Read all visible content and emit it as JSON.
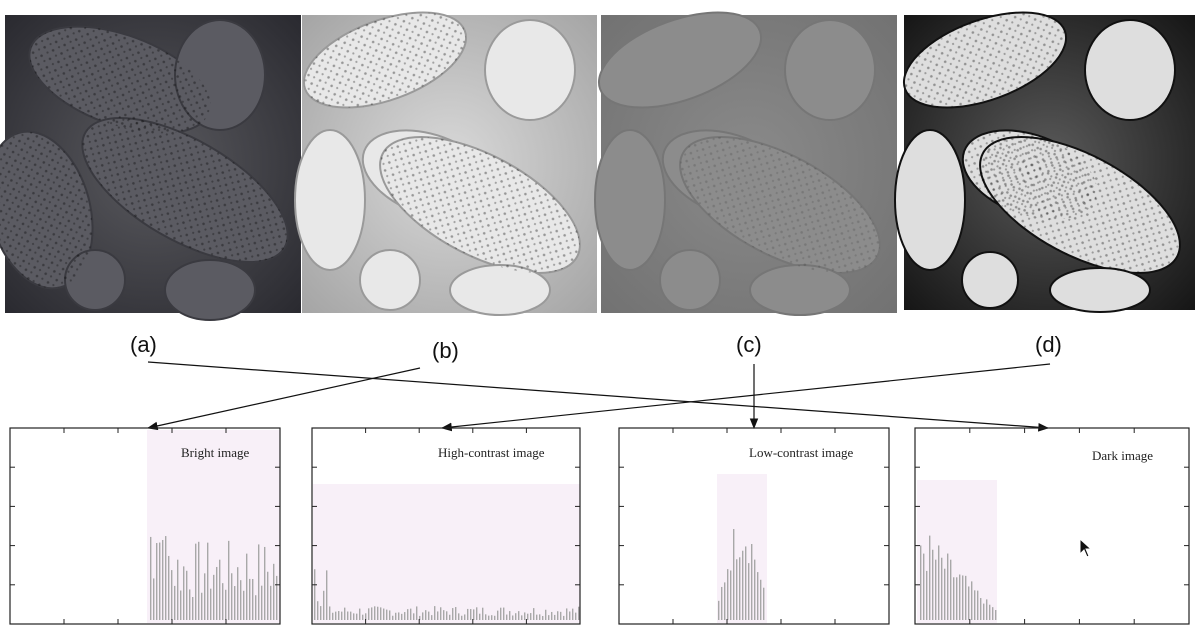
{
  "labels": [
    "(a)",
    "(b)",
    "(c)",
    "(d)"
  ],
  "histogram_titles": [
    "Bright image",
    "High-contrast image",
    "Low-contrast image",
    "Dark image"
  ],
  "images": [
    {
      "name": "dark-pollen-image",
      "tone": "dark"
    },
    {
      "name": "bright-pollen-image",
      "tone": "bright"
    },
    {
      "name": "low-contrast-pollen-image",
      "tone": "low-contrast"
    },
    {
      "name": "high-contrast-pollen-image",
      "tone": "high-contrast"
    }
  ],
  "colors": {
    "histogram_band": "#f8f0f8",
    "bars": "#a8a8a8",
    "frame": "#222222",
    "arrow": "#111111"
  },
  "icons": [
    "cursor-icon"
  ]
}
